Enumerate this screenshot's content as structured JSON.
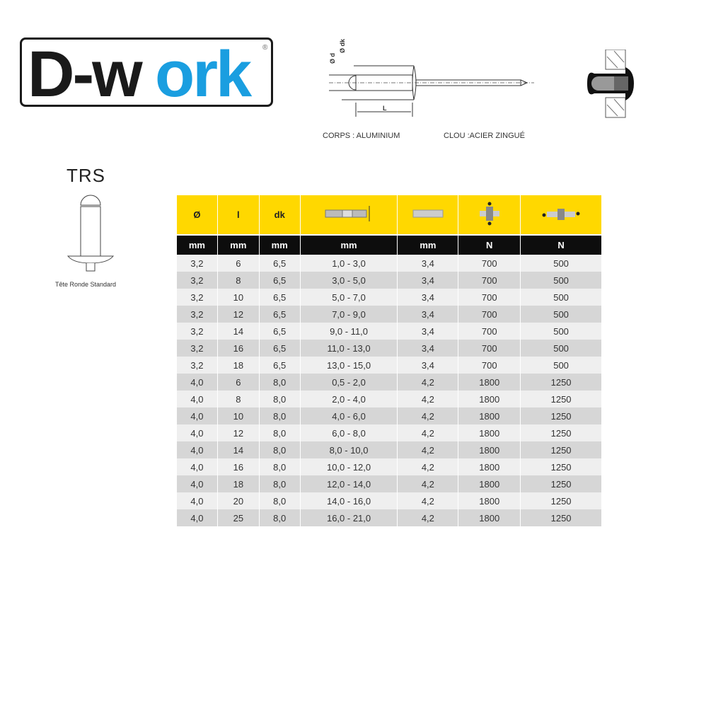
{
  "logo": {
    "text_dark": "D-w",
    "text_blue": "ork",
    "registered": "®",
    "blue": "#1a9ee0"
  },
  "diagram": {
    "label_d": "Ø d",
    "label_dk": "Ø dk",
    "label_L": "L",
    "body_material": "CORPS : ALUMINIUM",
    "nail_material": "CLOU :ACIER ZINGUÉ"
  },
  "product": {
    "code": "TRS",
    "caption": "Tête Ronde Standard"
  },
  "table": {
    "headers": [
      "Ø",
      "l",
      "dk",
      "",
      "",
      "",
      ""
    ],
    "header_icons": [
      "",
      "",
      "",
      "grip-range-icon",
      "drill-hole-icon",
      "tensile-strength-icon",
      "shear-strength-icon"
    ],
    "units": [
      "mm",
      "mm",
      "mm",
      "mm",
      "mm",
      "N",
      "N"
    ],
    "rows": [
      [
        "3,2",
        "6",
        "6,5",
        "1,0 - 3,0",
        "3,4",
        "700",
        "500"
      ],
      [
        "3,2",
        "8",
        "6,5",
        "3,0 - 5,0",
        "3,4",
        "700",
        "500"
      ],
      [
        "3,2",
        "10",
        "6,5",
        "5,0 - 7,0",
        "3,4",
        "700",
        "500"
      ],
      [
        "3,2",
        "12",
        "6,5",
        "7,0 - 9,0",
        "3,4",
        "700",
        "500"
      ],
      [
        "3,2",
        "14",
        "6,5",
        "9,0 - 11,0",
        "3,4",
        "700",
        "500"
      ],
      [
        "3,2",
        "16",
        "6,5",
        "11,0 - 13,0",
        "3,4",
        "700",
        "500"
      ],
      [
        "3,2",
        "18",
        "6,5",
        "13,0 - 15,0",
        "3,4",
        "700",
        "500"
      ],
      [
        "4,0",
        "6",
        "8,0",
        "0,5 - 2,0",
        "4,2",
        "1800",
        "1250"
      ],
      [
        "4,0",
        "8",
        "8,0",
        "2,0 - 4,0",
        "4,2",
        "1800",
        "1250"
      ],
      [
        "4,0",
        "10",
        "8,0",
        "4,0 - 6,0",
        "4,2",
        "1800",
        "1250"
      ],
      [
        "4,0",
        "12",
        "8,0",
        "6,0 - 8,0",
        "4,2",
        "1800",
        "1250"
      ],
      [
        "4,0",
        "14",
        "8,0",
        "8,0 - 10,0",
        "4,2",
        "1800",
        "1250"
      ],
      [
        "4,0",
        "16",
        "8,0",
        "10,0 - 12,0",
        "4,2",
        "1800",
        "1250"
      ],
      [
        "4,0",
        "18",
        "8,0",
        "12,0 - 14,0",
        "4,2",
        "1800",
        "1250"
      ],
      [
        "4,0",
        "20",
        "8,0",
        "14,0 - 16,0",
        "4,2",
        "1800",
        "1250"
      ],
      [
        "4,0",
        "25",
        "8,0",
        "16,0 - 21,0",
        "4,2",
        "1800",
        "1250"
      ]
    ]
  }
}
